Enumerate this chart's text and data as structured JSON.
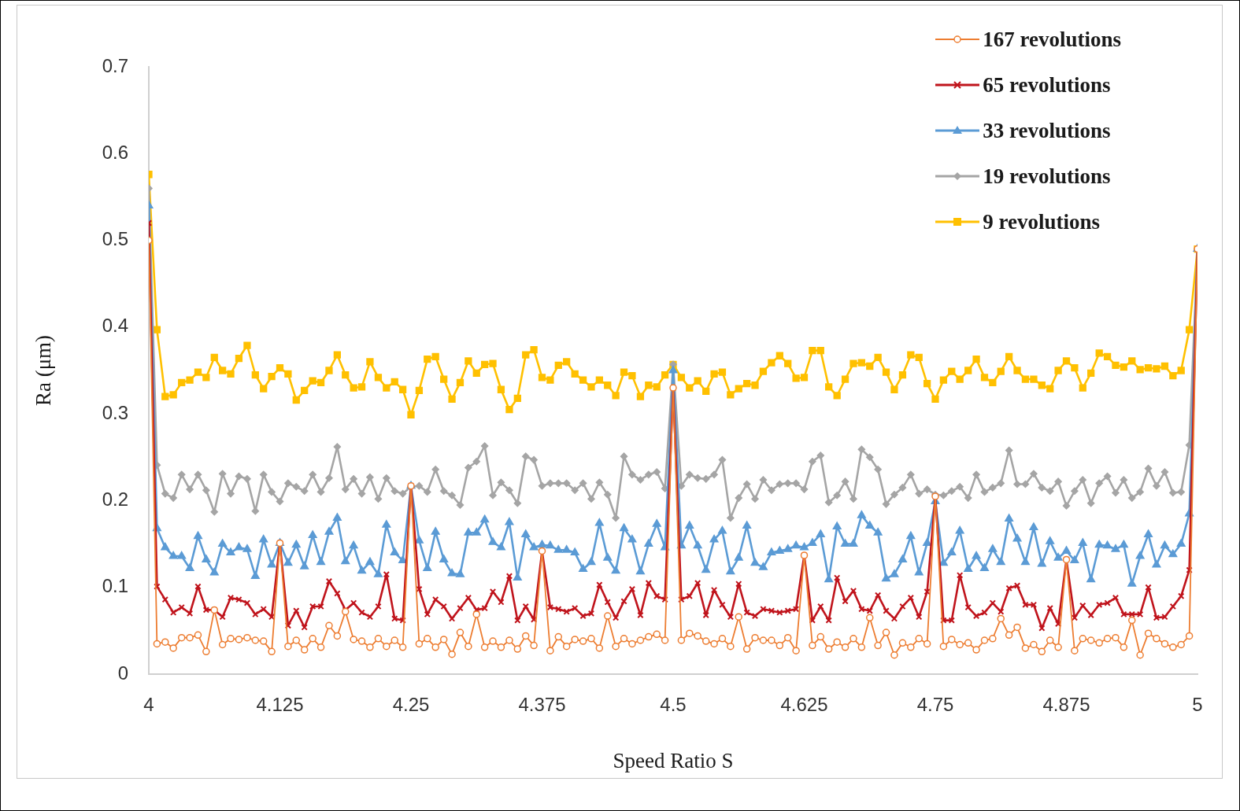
{
  "chart_data": {
    "type": "line",
    "xlabel": "Speed Ratio S",
    "ylabel": "Ra (μm)",
    "xlim": [
      4,
      5
    ],
    "xticks": [
      4,
      4.125,
      4.25,
      4.375,
      4.5,
      4.625,
      4.75,
      4.875,
      5
    ],
    "ylim": [
      0,
      0.7
    ],
    "yticks": [
      0,
      0.1,
      0.2,
      0.3,
      0.4,
      0.5,
      0.6,
      0.7
    ],
    "grid": false,
    "legend": "top right",
    "x": [
      4,
      4.0078,
      4.0156,
      4.0234,
      4.0313,
      4.0391,
      4.0469,
      4.0547,
      4.0625,
      4.0703,
      4.0781,
      4.0859,
      4.0938,
      4.1016,
      4.1094,
      4.1172,
      4.125,
      4.1328,
      4.1406,
      4.1484,
      4.1563,
      4.1641,
      4.1719,
      4.1797,
      4.1875,
      4.1953,
      4.2031,
      4.2109,
      4.2188,
      4.2266,
      4.2344,
      4.2422,
      4.25,
      4.2578,
      4.2656,
      4.2734,
      4.2813,
      4.2891,
      4.2969,
      4.3047,
      4.3125,
      4.3203,
      4.3281,
      4.3359,
      4.3438,
      4.3516,
      4.3594,
      4.3672,
      4.375,
      4.3828,
      4.3906,
      4.3984,
      4.4063,
      4.4141,
      4.4219,
      4.4297,
      4.4375,
      4.4453,
      4.4531,
      4.4609,
      4.4688,
      4.4766,
      4.4844,
      4.4922,
      4.5,
      4.5078,
      4.5156,
      4.5234,
      4.5313,
      4.5391,
      4.5469,
      4.5547,
      4.5625,
      4.5703,
      4.5781,
      4.5859,
      4.5938,
      4.6016,
      4.6094,
      4.6172,
      4.625,
      4.6328,
      4.6406,
      4.6484,
      4.6563,
      4.6641,
      4.6719,
      4.6797,
      4.6875,
      4.6953,
      4.7031,
      4.7109,
      4.7188,
      4.7266,
      4.7344,
      4.7422,
      4.75,
      4.7578,
      4.7656,
      4.7734,
      4.7813,
      4.7891,
      4.7969,
      4.8047,
      4.8125,
      4.8203,
      4.8281,
      4.8359,
      4.8438,
      4.8516,
      4.8594,
      4.8672,
      4.875,
      4.8828,
      4.8906,
      4.8984,
      4.9063,
      4.9141,
      4.9219,
      4.9297,
      4.9375,
      4.9453,
      4.9531,
      4.9609,
      4.9688,
      4.9766,
      4.9844,
      4.9922,
      5
    ],
    "series": [
      {
        "name": "167 revolutions",
        "color": "#ed7d31",
        "marker": "circle",
        "values": [
          0.5,
          0.035,
          0.037,
          0.03,
          0.042,
          0.042,
          0.045,
          0.026,
          0.074,
          0.034,
          0.041,
          0.04,
          0.042,
          0.039,
          0.038,
          0.026,
          0.151,
          0.032,
          0.039,
          0.028,
          0.041,
          0.031,
          0.056,
          0.044,
          0.072,
          0.04,
          0.038,
          0.031,
          0.041,
          0.032,
          0.039,
          0.031,
          0.217,
          0.035,
          0.041,
          0.031,
          0.04,
          0.023,
          0.048,
          0.032,
          0.069,
          0.031,
          0.038,
          0.031,
          0.039,
          0.029,
          0.044,
          0.033,
          0.142,
          0.027,
          0.043,
          0.032,
          0.04,
          0.038,
          0.041,
          0.03,
          0.067,
          0.032,
          0.041,
          0.035,
          0.039,
          0.043,
          0.046,
          0.039,
          0.33,
          0.039,
          0.047,
          0.044,
          0.038,
          0.035,
          0.041,
          0.032,
          0.066,
          0.029,
          0.042,
          0.039,
          0.039,
          0.033,
          0.042,
          0.027,
          0.137,
          0.033,
          0.043,
          0.029,
          0.037,
          0.031,
          0.041,
          0.031,
          0.065,
          0.033,
          0.048,
          0.022,
          0.036,
          0.031,
          0.041,
          0.035,
          0.205,
          0.032,
          0.04,
          0.034,
          0.036,
          0.028,
          0.039,
          0.041,
          0.064,
          0.045,
          0.054,
          0.03,
          0.034,
          0.026,
          0.039,
          0.031,
          0.132,
          0.027,
          0.041,
          0.039,
          0.036,
          0.041,
          0.042,
          0.031,
          0.062,
          0.022,
          0.047,
          0.041,
          0.035,
          0.031,
          0.034,
          0.044,
          0.49
        ]
      },
      {
        "name": "65 revolutions",
        "color": "#c0141c",
        "marker": "cross",
        "values": [
          0.52,
          0.101,
          0.086,
          0.071,
          0.077,
          0.07,
          0.101,
          0.074,
          0.074,
          0.066,
          0.088,
          0.086,
          0.082,
          0.069,
          0.075,
          0.066,
          0.151,
          0.056,
          0.073,
          0.054,
          0.078,
          0.078,
          0.107,
          0.093,
          0.074,
          0.082,
          0.071,
          0.066,
          0.078,
          0.115,
          0.064,
          0.062,
          0.217,
          0.098,
          0.069,
          0.086,
          0.078,
          0.064,
          0.076,
          0.088,
          0.074,
          0.076,
          0.095,
          0.083,
          0.113,
          0.062,
          0.078,
          0.063,
          0.142,
          0.077,
          0.075,
          0.072,
          0.076,
          0.067,
          0.07,
          0.103,
          0.083,
          0.065,
          0.084,
          0.098,
          0.068,
          0.105,
          0.09,
          0.086,
          0.33,
          0.086,
          0.09,
          0.105,
          0.068,
          0.097,
          0.08,
          0.066,
          0.104,
          0.071,
          0.067,
          0.075,
          0.073,
          0.071,
          0.073,
          0.075,
          0.137,
          0.062,
          0.078,
          0.062,
          0.111,
          0.084,
          0.096,
          0.075,
          0.073,
          0.091,
          0.073,
          0.064,
          0.078,
          0.088,
          0.066,
          0.095,
          0.205,
          0.062,
          0.062,
          0.114,
          0.077,
          0.067,
          0.071,
          0.082,
          0.072,
          0.099,
          0.102,
          0.08,
          0.08,
          0.053,
          0.076,
          0.058,
          0.132,
          0.065,
          0.079,
          0.068,
          0.08,
          0.082,
          0.088,
          0.069,
          0.069,
          0.069,
          0.1,
          0.065,
          0.066,
          0.078,
          0.09,
          0.12,
          0.49
        ]
      },
      {
        "name": "33 revolutions",
        "color": "#5b9bd5",
        "marker": "triangle",
        "values": [
          0.54,
          0.168,
          0.146,
          0.136,
          0.136,
          0.122,
          0.159,
          0.132,
          0.117,
          0.15,
          0.14,
          0.146,
          0.144,
          0.113,
          0.155,
          0.126,
          0.151,
          0.128,
          0.149,
          0.124,
          0.16,
          0.129,
          0.164,
          0.18,
          0.13,
          0.148,
          0.119,
          0.129,
          0.115,
          0.172,
          0.14,
          0.131,
          0.217,
          0.154,
          0.122,
          0.164,
          0.132,
          0.116,
          0.115,
          0.163,
          0.163,
          0.178,
          0.152,
          0.146,
          0.175,
          0.111,
          0.161,
          0.146,
          0.149,
          0.148,
          0.143,
          0.143,
          0.14,
          0.121,
          0.129,
          0.174,
          0.134,
          0.119,
          0.168,
          0.155,
          0.118,
          0.15,
          0.173,
          0.146,
          0.35,
          0.148,
          0.171,
          0.148,
          0.12,
          0.155,
          0.165,
          0.118,
          0.134,
          0.171,
          0.128,
          0.123,
          0.14,
          0.142,
          0.144,
          0.148,
          0.146,
          0.151,
          0.161,
          0.109,
          0.17,
          0.15,
          0.15,
          0.183,
          0.171,
          0.163,
          0.11,
          0.115,
          0.132,
          0.159,
          0.117,
          0.151,
          0.199,
          0.128,
          0.14,
          0.165,
          0.121,
          0.136,
          0.122,
          0.144,
          0.129,
          0.179,
          0.156,
          0.129,
          0.169,
          0.127,
          0.153,
          0.134,
          0.142,
          0.131,
          0.151,
          0.109,
          0.149,
          0.148,
          0.144,
          0.149,
          0.104,
          0.136,
          0.161,
          0.126,
          0.148,
          0.138,
          0.15,
          0.185,
          0.49
        ]
      },
      {
        "name": "19 revolutions",
        "color": "#a5a5a5",
        "marker": "diamond",
        "values": [
          0.56,
          0.241,
          0.208,
          0.203,
          0.23,
          0.213,
          0.23,
          0.212,
          0.187,
          0.231,
          0.208,
          0.228,
          0.225,
          0.188,
          0.23,
          0.21,
          0.199,
          0.22,
          0.216,
          0.211,
          0.23,
          0.21,
          0.226,
          0.262,
          0.213,
          0.225,
          0.208,
          0.227,
          0.202,
          0.226,
          0.211,
          0.208,
          0.216,
          0.217,
          0.21,
          0.236,
          0.211,
          0.206,
          0.195,
          0.238,
          0.245,
          0.263,
          0.206,
          0.221,
          0.212,
          0.197,
          0.251,
          0.247,
          0.217,
          0.22,
          0.22,
          0.22,
          0.212,
          0.22,
          0.202,
          0.221,
          0.207,
          0.18,
          0.251,
          0.23,
          0.224,
          0.23,
          0.233,
          0.214,
          0.357,
          0.217,
          0.23,
          0.226,
          0.225,
          0.23,
          0.247,
          0.18,
          0.203,
          0.219,
          0.202,
          0.224,
          0.212,
          0.219,
          0.22,
          0.22,
          0.213,
          0.245,
          0.252,
          0.198,
          0.206,
          0.222,
          0.202,
          0.259,
          0.25,
          0.236,
          0.196,
          0.207,
          0.215,
          0.23,
          0.208,
          0.213,
          0.207,
          0.206,
          0.211,
          0.216,
          0.203,
          0.23,
          0.21,
          0.215,
          0.22,
          0.258,
          0.219,
          0.219,
          0.231,
          0.215,
          0.211,
          0.222,
          0.194,
          0.211,
          0.224,
          0.197,
          0.22,
          0.228,
          0.209,
          0.224,
          0.203,
          0.21,
          0.237,
          0.217,
          0.233,
          0.209,
          0.21,
          0.264,
          0.49
        ]
      },
      {
        "name": "9 revolutions",
        "color": "#ffc000",
        "marker": "square",
        "values": [
          0.576,
          0.397,
          0.32,
          0.322,
          0.336,
          0.339,
          0.348,
          0.342,
          0.365,
          0.35,
          0.346,
          0.364,
          0.379,
          0.345,
          0.329,
          0.343,
          0.353,
          0.346,
          0.316,
          0.327,
          0.338,
          0.336,
          0.35,
          0.368,
          0.345,
          0.33,
          0.331,
          0.36,
          0.342,
          0.33,
          0.337,
          0.328,
          0.299,
          0.327,
          0.363,
          0.366,
          0.34,
          0.317,
          0.336,
          0.361,
          0.347,
          0.357,
          0.358,
          0.328,
          0.305,
          0.318,
          0.368,
          0.374,
          0.342,
          0.339,
          0.356,
          0.36,
          0.346,
          0.339,
          0.331,
          0.339,
          0.333,
          0.321,
          0.348,
          0.344,
          0.32,
          0.333,
          0.331,
          0.345,
          0.357,
          0.342,
          0.33,
          0.338,
          0.326,
          0.346,
          0.348,
          0.322,
          0.329,
          0.335,
          0.333,
          0.349,
          0.359,
          0.367,
          0.358,
          0.341,
          0.342,
          0.373,
          0.373,
          0.331,
          0.321,
          0.34,
          0.358,
          0.359,
          0.355,
          0.365,
          0.348,
          0.328,
          0.345,
          0.368,
          0.365,
          0.335,
          0.317,
          0.339,
          0.349,
          0.34,
          0.35,
          0.363,
          0.342,
          0.336,
          0.349,
          0.366,
          0.35,
          0.34,
          0.34,
          0.333,
          0.329,
          0.35,
          0.361,
          0.353,
          0.33,
          0.347,
          0.37,
          0.366,
          0.356,
          0.354,
          0.361,
          0.351,
          0.353,
          0.352,
          0.355,
          0.344,
          0.35,
          0.397,
          0.49
        ]
      }
    ]
  }
}
